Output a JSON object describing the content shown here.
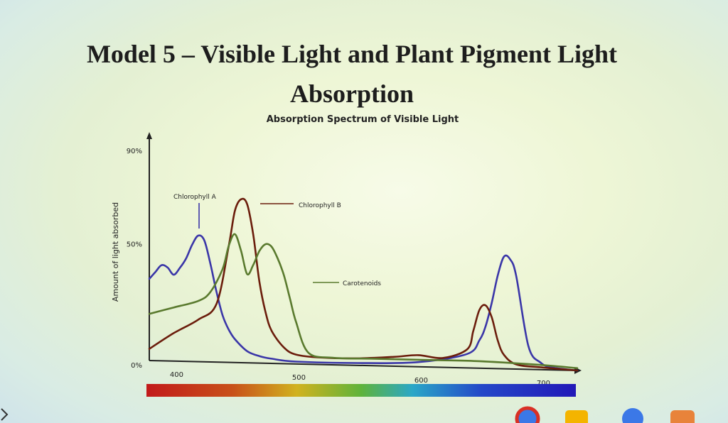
{
  "header": {
    "title_line1": "Model 5 – Visible Light and Plant Pigment Light",
    "title_line2": "Absorption"
  },
  "chart_data": {
    "type": "line",
    "title": "Absorption Spectrum of Visible Light",
    "xlabel": "",
    "ylabel": "Amount of light absorbed",
    "x_ticks": [
      400,
      500,
      600,
      700
    ],
    "y_ticks": [
      "0%",
      "50%",
      "90%"
    ],
    "xlim": [
      380,
      730
    ],
    "ylim": [
      0,
      90
    ],
    "grid": false,
    "spectrum_bar": true,
    "series": [
      {
        "name": "Chlorophyll A",
        "color": "#3a36a8",
        "x": [
          380,
          385,
          390,
          395,
          400,
          405,
          410,
          415,
          420,
          425,
          430,
          435,
          440,
          445,
          450,
          460,
          470,
          480,
          500,
          550,
          600,
          640,
          650,
          655,
          660,
          665,
          670,
          675,
          680,
          690,
          700,
          710,
          730
        ],
        "y": [
          35,
          38,
          41,
          40,
          37,
          40,
          44,
          50,
          54,
          52,
          42,
          30,
          20,
          14,
          10,
          5,
          3,
          2,
          1,
          1,
          2,
          6,
          12,
          18,
          28,
          40,
          48,
          47,
          40,
          10,
          3,
          1,
          0
        ]
      },
      {
        "name": "Chlorophyll B",
        "color": "#6b1d0c",
        "x": [
          380,
          400,
          420,
          435,
          445,
          450,
          455,
          460,
          465,
          470,
          475,
          480,
          490,
          500,
          520,
          550,
          580,
          600,
          620,
          640,
          645,
          650,
          655,
          660,
          665,
          670,
          680,
          700,
          730
        ],
        "y": [
          5,
          12,
          18,
          25,
          50,
          65,
          70,
          68,
          55,
          35,
          22,
          14,
          7,
          4,
          3,
          3,
          4,
          5,
          4,
          8,
          16,
          25,
          27,
          22,
          12,
          6,
          2,
          1,
          0
        ]
      },
      {
        "name": "Carotenoids",
        "color": "#5a7a2e",
        "x": [
          380,
          400,
          420,
          430,
          440,
          445,
          450,
          455,
          460,
          465,
          470,
          475,
          480,
          485,
          490,
          495,
          500,
          510,
          530,
          560,
          600,
          650,
          700,
          730
        ],
        "y": [
          20,
          23,
          26,
          30,
          40,
          50,
          55,
          48,
          38,
          42,
          48,
          51,
          50,
          45,
          38,
          28,
          18,
          5,
          3,
          3,
          3,
          3,
          2,
          1
        ]
      }
    ],
    "annotations": [
      "Chlorophyll A",
      "Chlorophyll B",
      "Carotenoids"
    ]
  },
  "taskbar": {
    "icons": [
      "chrome-icon",
      "slides-icon",
      "meet-icon",
      "files-icon"
    ],
    "icon_colors": [
      "#3b78e7",
      "#f4b400",
      "#3b78e7",
      "#e8833a"
    ]
  }
}
